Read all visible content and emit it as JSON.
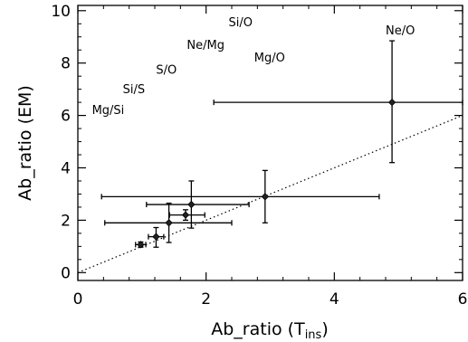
{
  "chart_data": {
    "type": "scatter",
    "xlabel": "Ab_ratio (T",
    "xlabel_sub": "ins",
    "xlabel_close": ")",
    "ylabel": "Ab_ratio (EM)",
    "xlim": [
      0,
      6
    ],
    "ylim": [
      -0.3,
      10.2
    ],
    "x_ticks": [
      0,
      2,
      4,
      6
    ],
    "y_ticks": [
      0,
      2,
      4,
      6,
      8,
      10
    ],
    "x_tick_labels": [
      "0",
      "2",
      "4",
      "6"
    ],
    "y_tick_labels": [
      "0",
      "2",
      "4",
      "6",
      "8",
      "10"
    ],
    "grid": false,
    "reference_line": {
      "style": "dotted",
      "slope": 1,
      "intercept": 0
    },
    "points": [
      {
        "x": 0.98,
        "y": 1.07,
        "xerr": [
          0.08,
          0.08
        ],
        "yerr": [
          0.1,
          0.1
        ]
      },
      {
        "x": 1.22,
        "y": 1.37,
        "xerr": [
          0.12,
          0.12
        ],
        "yerr": [
          0.4,
          0.35
        ]
      },
      {
        "x": 1.42,
        "y": 1.9,
        "xerr": [
          1.0,
          0.98
        ],
        "yerr": [
          0.75,
          0.75
        ]
      },
      {
        "x": 1.77,
        "y": 2.6,
        "xerr": [
          0.7,
          0.9
        ],
        "yerr": [
          0.9,
          0.9
        ]
      },
      {
        "x": 1.68,
        "y": 2.2,
        "xerr": [
          0.25,
          0.3
        ],
        "yerr": [
          0.2,
          0.2
        ]
      },
      {
        "x": 2.92,
        "y": 2.9,
        "xerr": [
          2.55,
          1.78
        ],
        "yerr": [
          1.0,
          1.0
        ]
      },
      {
        "x": 4.9,
        "y": 6.5,
        "xerr": [
          2.78,
          1.1
        ],
        "yerr": [
          2.3,
          2.35
        ]
      }
    ],
    "annotations": [
      {
        "text": "Si/O",
        "x": 2.35,
        "y": 9.4
      },
      {
        "text": "Ne/O",
        "x": 4.8,
        "y": 9.1
      },
      {
        "text": "Ne/Mg",
        "x": 1.7,
        "y": 8.55
      },
      {
        "text": "Mg/O",
        "x": 2.75,
        "y": 8.05
      },
      {
        "text": "S/O",
        "x": 1.22,
        "y": 7.6
      },
      {
        "text": "Si/S",
        "x": 0.7,
        "y": 6.85
      },
      {
        "text": "Mg/Si",
        "x": 0.22,
        "y": 6.05
      }
    ]
  }
}
